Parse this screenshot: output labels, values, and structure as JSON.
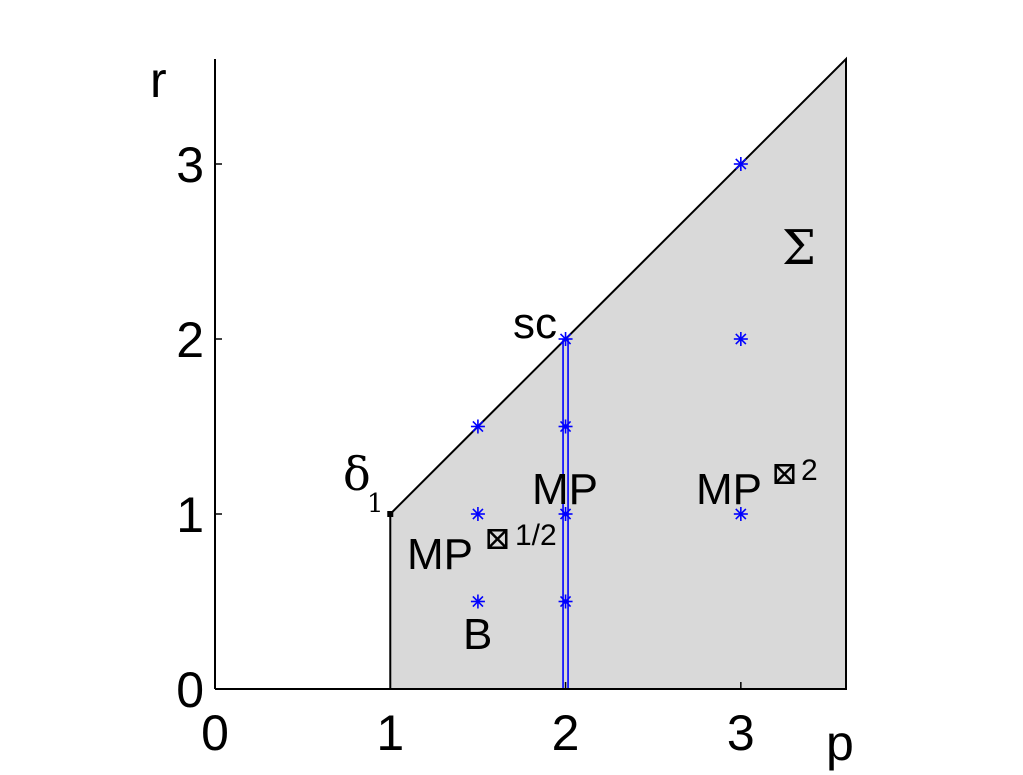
{
  "chart_data": {
    "type": "scatter",
    "xlabel": "p",
    "ylabel": "r",
    "xlim": [
      0,
      3.6
    ],
    "ylim": [
      0,
      3.6
    ],
    "xticks": [
      "0",
      "1",
      "2",
      "3"
    ],
    "yticks": [
      "0",
      "1",
      "2",
      "3"
    ],
    "region": {
      "label": "Σ",
      "vertices": [
        [
          1,
          0
        ],
        [
          1,
          1
        ],
        [
          3.6,
          3.6
        ],
        [
          3.6,
          0
        ]
      ],
      "fill": "#d9d9d9"
    },
    "points": [
      {
        "x": 1.5,
        "y": 1.5
      },
      {
        "x": 1.5,
        "y": 1.0
      },
      {
        "x": 1.5,
        "y": 0.5
      },
      {
        "x": 2.0,
        "y": 2.0
      },
      {
        "x": 2.0,
        "y": 1.5
      },
      {
        "x": 2.0,
        "y": 1.0
      },
      {
        "x": 2.0,
        "y": 0.5
      },
      {
        "x": 3.0,
        "y": 3.0
      },
      {
        "x": 3.0,
        "y": 2.0
      },
      {
        "x": 3.0,
        "y": 1.0
      }
    ],
    "vertical_line": {
      "x": 2.0,
      "y_from": 0,
      "y_to": 2.0
    },
    "corner_marker": {
      "x": 1.0,
      "y": 1.0
    },
    "annotations": {
      "delta_symbol": "δ",
      "delta_sub": "1",
      "sc": "sc",
      "sigma": "Σ",
      "mp_half_main": "MP",
      "mp_half_box": "⊠",
      "mp_half_exp": "1/2",
      "mp_center": "MP",
      "mp_sq_main": "MP",
      "mp_sq_box": "⊠",
      "mp_sq_exp": "2",
      "b": "B"
    },
    "colors": {
      "points": "#0000ff",
      "line": "#0000ff",
      "region": "#d9d9d9",
      "axes": "#000000"
    }
  }
}
